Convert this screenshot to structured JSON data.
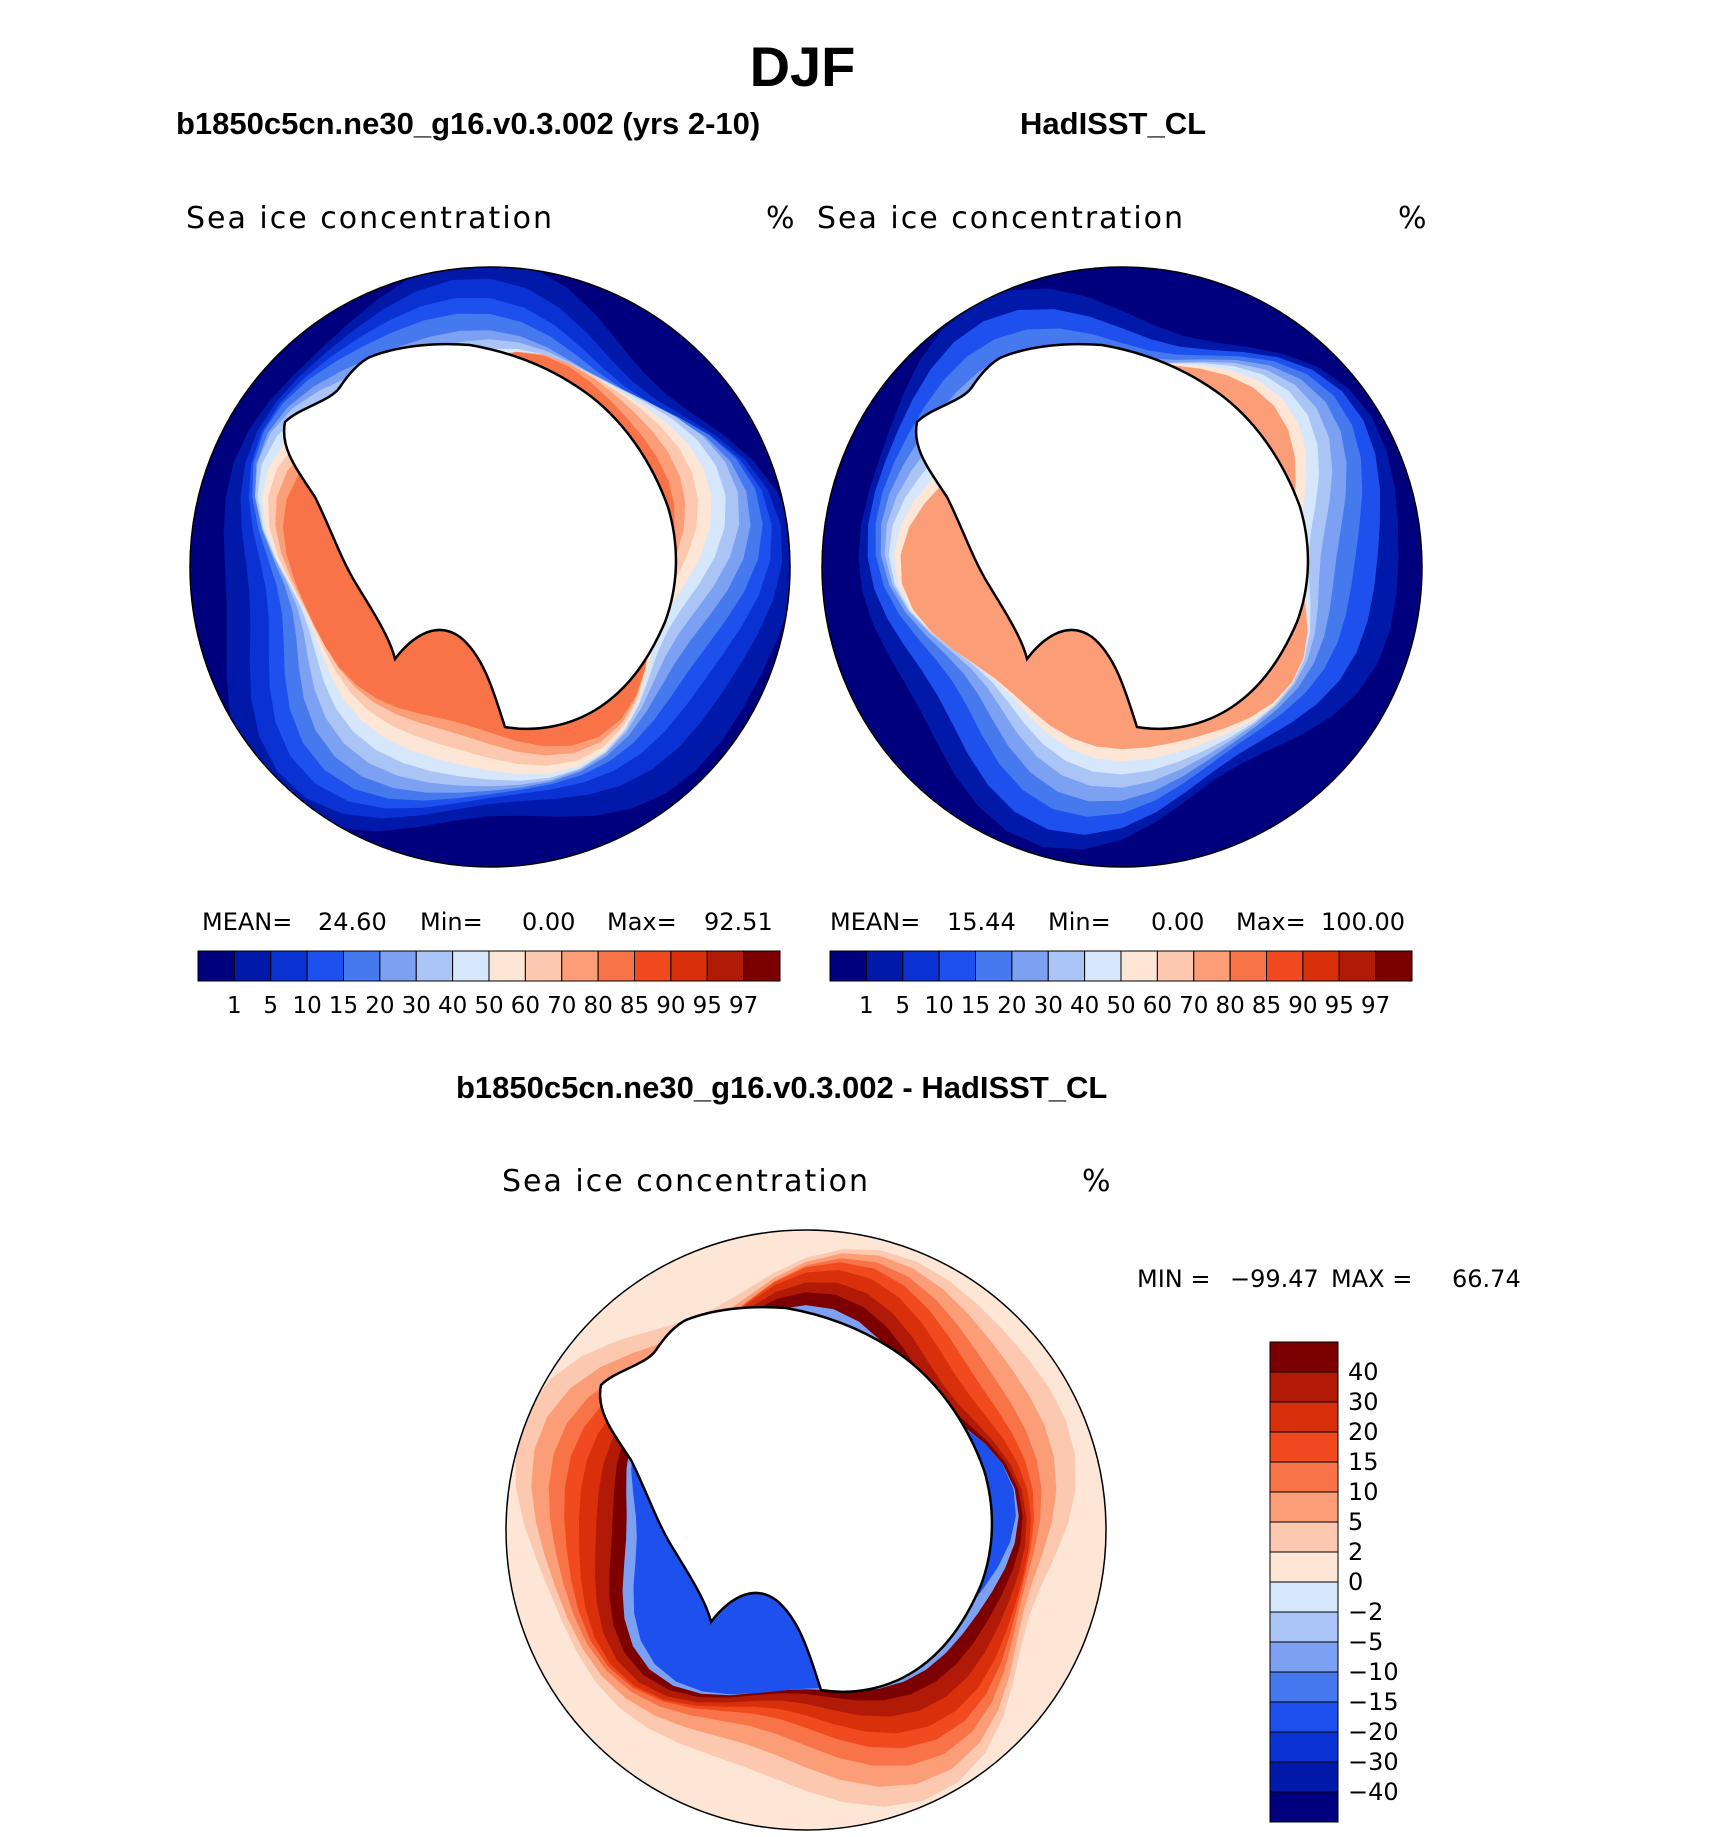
{
  "header": {
    "title": "DJF"
  },
  "panels": [
    {
      "title": "b1850c5cn.ne30_g16.v0.3.002 (yrs 2-10)",
      "variable": "Sea ice concentration",
      "units": "%",
      "stats": {
        "mean_label": "MEAN=",
        "mean": "24.60",
        "min_label": "Min=",
        "min": "0.00",
        "max_label": "Max=",
        "max": "92.51"
      }
    },
    {
      "title": "HadISST_CL",
      "variable": "Sea ice concentration",
      "units": "%",
      "stats": {
        "mean_label": "MEAN=",
        "mean": "15.44",
        "min_label": "Min=",
        "min": "0.00",
        "max_label": "Max=",
        "max": "100.00"
      }
    },
    {
      "title": "b1850c5cn.ne30_g16.v0.3.002 - HadISST_CL",
      "variable": "Sea ice concentration",
      "units": "%",
      "minmax": {
        "min_label": "MIN =",
        "min": "−99.47",
        "max_label": "MAX =",
        "max": "66.74"
      }
    }
  ],
  "chart_data": [
    {
      "type": "heatmap",
      "map": "south-polar-stereographic",
      "title": "b1850c5cn.ne30_g16.v0.3.002 (yrs 2-10)",
      "variable": "Sea ice concentration",
      "units": "%",
      "colorbar": {
        "levels": [
          "1",
          "5",
          "10",
          "15",
          "20",
          "30",
          "40",
          "50",
          "60",
          "70",
          "80",
          "85",
          "90",
          "95",
          "97"
        ],
        "colors": [
          "#00007f",
          "#0019a8",
          "#0a32d2",
          "#1e50ee",
          "#4678ee",
          "#7ca0f2",
          "#aac4f6",
          "#d6e6fb",
          "#fde6d6",
          "#fcc8b0",
          "#fb9e78",
          "#f87448",
          "#f04a1e",
          "#d9300c",
          "#b11a06",
          "#7d0000"
        ]
      },
      "stats": {
        "mean": 24.6,
        "min": 0.0,
        "max": 92.51
      }
    },
    {
      "type": "heatmap",
      "map": "south-polar-stereographic",
      "title": "HadISST_CL",
      "variable": "Sea ice concentration",
      "units": "%",
      "colorbar": {
        "levels": [
          "1",
          "5",
          "10",
          "15",
          "20",
          "30",
          "40",
          "50",
          "60",
          "70",
          "80",
          "85",
          "90",
          "95",
          "97"
        ],
        "colors": [
          "#00007f",
          "#0019a8",
          "#0a32d2",
          "#1e50ee",
          "#4678ee",
          "#7ca0f2",
          "#aac4f6",
          "#d6e6fb",
          "#fde6d6",
          "#fcc8b0",
          "#fb9e78",
          "#f87448",
          "#f04a1e",
          "#d9300c",
          "#b11a06",
          "#7d0000"
        ]
      },
      "stats": {
        "mean": 15.44,
        "min": 0.0,
        "max": 100.0
      }
    },
    {
      "type": "heatmap",
      "map": "south-polar-stereographic",
      "title": "b1850c5cn.ne30_g16.v0.3.002 - HadISST_CL",
      "variable": "Sea ice concentration",
      "units": "%",
      "colorbar": {
        "orientation": "vertical",
        "levels": [
          "40",
          "30",
          "20",
          "15",
          "10",
          "5",
          "2",
          "0",
          "−2",
          "−5",
          "−10",
          "−15",
          "−20",
          "−30",
          "−40"
        ],
        "colors": [
          "#7d0000",
          "#b11a06",
          "#d9300c",
          "#f04a1e",
          "#f87448",
          "#fb9e78",
          "#fcc8b0",
          "#fde6d6",
          "#d6e6fb",
          "#aac4f6",
          "#7ca0f2",
          "#4678ee",
          "#1e50ee",
          "#0a32d2",
          "#0019a8",
          "#00007f"
        ]
      },
      "stats": {
        "min": -99.47,
        "max": 66.74
      }
    }
  ]
}
